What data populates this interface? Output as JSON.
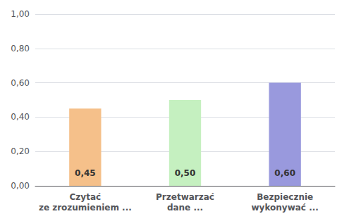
{
  "chart_data": {
    "type": "bar",
    "categories": [
      "Czytać\nze zrozumieniem ...",
      "Przetwarzać\ndane ...",
      "Bezpiecznie\nwykonywać ..."
    ],
    "values": [
      0.45,
      0.5,
      0.6
    ],
    "value_labels": [
      "0,45",
      "0,50",
      "0,60"
    ],
    "colors": [
      "#F5C08A",
      "#C5F0C0",
      "#9999DD"
    ],
    "ylim": [
      0.0,
      1.0
    ],
    "yticks": [
      {
        "value": 0.0,
        "label": "0,00"
      },
      {
        "value": 0.2,
        "label": "0,20"
      },
      {
        "value": 0.4,
        "label": "0,40"
      },
      {
        "value": 0.6,
        "label": "0,60"
      },
      {
        "value": 0.8,
        "label": "0,80"
      },
      {
        "value": 1.0,
        "label": "1,00"
      }
    ],
    "grid": true,
    "data_labels": true
  }
}
